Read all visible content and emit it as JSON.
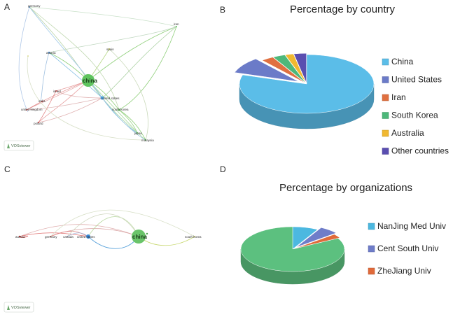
{
  "panels": {
    "a": {
      "label": "A",
      "network": "country co-authorship network"
    },
    "b": {
      "label": "B"
    },
    "c": {
      "label": "C",
      "network": "country co-authorship network (timeline)"
    },
    "d": {
      "label": "D"
    }
  },
  "network_a": {
    "nodes": [
      {
        "id": "germany",
        "label": "germany"
      },
      {
        "id": "austria",
        "label": "austria"
      },
      {
        "id": "china",
        "label": "china"
      },
      {
        "id": "spain",
        "label": "spain"
      },
      {
        "id": "iran",
        "label": "iran"
      },
      {
        "id": "united_states",
        "label": "united states"
      },
      {
        "id": "south_korea",
        "label": "south korea"
      },
      {
        "id": "israel",
        "label": "israel"
      },
      {
        "id": "india",
        "label": "india"
      },
      {
        "id": "united_kingdom",
        "label": "united kingdom"
      },
      {
        "id": "japan",
        "label": "japan"
      },
      {
        "id": "poland",
        "label": "poland"
      },
      {
        "id": "malaysia",
        "label": "malaysia"
      },
      {
        "id": "italy",
        "label": "italy"
      }
    ],
    "watermark": "VOSviewer"
  },
  "network_c": {
    "nodes": [
      {
        "id": "austria",
        "label": "austria"
      },
      {
        "id": "germany",
        "label": "germany"
      },
      {
        "id": "canada",
        "label": "canada"
      },
      {
        "id": "united_states",
        "label": "united states"
      },
      {
        "id": "china",
        "label": "china"
      },
      {
        "id": "south_korea",
        "label": "south korea"
      }
    ],
    "watermark": "VOSviewer"
  },
  "chart_data": [
    {
      "type": "pie",
      "style": "3d-exploded",
      "title": "Percentage by country",
      "categories": [
        "China",
        "United States",
        "Iran",
        "South Korea",
        "Australia",
        "Other countries"
      ],
      "values": [
        80,
        9,
        3,
        3,
        2,
        3
      ],
      "colors": [
        "#5bbde8",
        "#6b7bc8",
        "#e07040",
        "#4db87a",
        "#f0b830",
        "#5a4eb0"
      ],
      "legend": "right"
    },
    {
      "type": "pie",
      "style": "3d-exploded",
      "title": "Percentage by organizations",
      "categories": [
        "NanJing Med Univ",
        "Cent South Univ",
        "ZheJiang Univ"
      ],
      "values": [
        8,
        6,
        3
      ],
      "colors": [
        "#4cb8e0",
        "#6f7dc9",
        "#e06a3a"
      ],
      "other_color": "#5cc07f",
      "other_value": 83,
      "legend": "right"
    }
  ]
}
